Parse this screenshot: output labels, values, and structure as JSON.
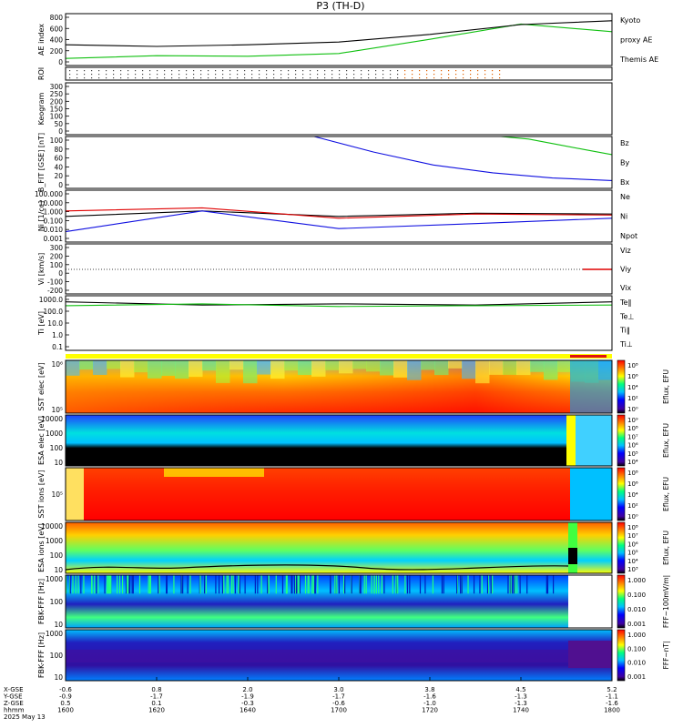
{
  "title": "P3 (TH-D)",
  "colors": {
    "red": "#e00000",
    "green": "#10c010",
    "blue": "#1010e0",
    "black": "#000000",
    "yellow": "#ffff00",
    "redbar": "#e01010"
  },
  "panels": [
    {
      "id": "ae",
      "ylabel": "AE index",
      "ticks": [
        "800",
        "600",
        "400",
        "200",
        "0"
      ],
      "legend": [
        {
          "text": "Kyoto",
          "color": "#10c010"
        },
        {
          "text": "proxy AE",
          "color": "#10c010"
        },
        {
          "text": "Themis AE",
          "color": "#000000"
        }
      ]
    },
    {
      "id": "roi",
      "ylabel": "ROI",
      "ticks": [],
      "legend": []
    },
    {
      "id": "keogram",
      "ylabel": "Keogram",
      "ticks": [
        "300",
        "250",
        "200",
        "150",
        "100",
        "50",
        "0"
      ],
      "legend": []
    },
    {
      "id": "bfit",
      "ylabel": "B_FIT [GSE] [nT]",
      "ticks": [
        "100",
        "80",
        "60",
        "40",
        "20",
        "0"
      ],
      "legend": [
        {
          "text": "Bz",
          "color": "#e00000"
        },
        {
          "text": "By",
          "color": "#10c010"
        },
        {
          "text": "Bx",
          "color": "#1010e0"
        }
      ]
    },
    {
      "id": "ni",
      "ylabel": "Ni [1/cc]",
      "ticks": [
        "100.000",
        "10.000",
        "1.000",
        "0.100",
        "0.010",
        "0.001"
      ],
      "legend": [
        {
          "text": "Ne",
          "color": "#e00000"
        },
        {
          "text": "Ni",
          "color": "#000000"
        },
        {
          "text": "Npot",
          "color": "#1010e0"
        }
      ]
    },
    {
      "id": "vi",
      "ylabel": "Vi [km/s]",
      "ticks": [
        "300",
        "200",
        "100",
        "0",
        "-100",
        "-200"
      ],
      "legend": [
        {
          "text": "Viz",
          "color": "#e00000"
        },
        {
          "text": "Viy",
          "color": "#10c010"
        },
        {
          "text": "Vix",
          "color": "#1010e0"
        }
      ]
    },
    {
      "id": "ti",
      "ylabel": "Ti [eV]",
      "ticks": [
        "1000.0",
        "100.0",
        "10.0",
        "1.0",
        "0.1"
      ],
      "legend": [
        {
          "text": "Te‖",
          "color": "#000000"
        },
        {
          "text": "Te⊥",
          "color": "#e00000"
        },
        {
          "text": "Ti‖",
          "color": "#10c010"
        },
        {
          "text": "Ti⊥",
          "color": "#1010e0"
        }
      ]
    },
    {
      "id": "sst_e",
      "ylabel": "SST elec [eV]",
      "ticks": [
        "10⁶",
        "10⁵"
      ],
      "cbar": {
        "label": "Eflux, EFU",
        "ticks": [
          "10⁸",
          "10⁶",
          "10⁴",
          "10²",
          "10⁰"
        ]
      }
    },
    {
      "id": "esa_e",
      "ylabel": "ESA elec [eV]",
      "ticks": [
        "10000",
        "1000",
        "100",
        "10"
      ],
      "cbar": {
        "label": "Eflux, EFU",
        "ticks": [
          "10⁹",
          "10⁸",
          "10⁷",
          "10⁶",
          "10⁵",
          "10⁴"
        ]
      }
    },
    {
      "id": "sst_i",
      "ylabel": "SST ions [eV]",
      "ticks": [
        "10⁵"
      ],
      "cbar": {
        "label": "Eflux, EFU",
        "ticks": [
          "10⁸",
          "10⁶",
          "10⁴",
          "10²",
          "10⁰"
        ]
      }
    },
    {
      "id": "esa_i",
      "ylabel": "ESA ions [eV]",
      "ticks": [
        "10000",
        "1000",
        "100",
        "10"
      ],
      "cbar": {
        "label": "Eflux, EFU",
        "ticks": [
          "10⁸",
          "10⁷",
          "10⁶",
          "10⁵",
          "10⁴",
          "10³"
        ]
      }
    },
    {
      "id": "fbk_fff",
      "ylabel": "FBK-FFF [Hz]",
      "ticks": [
        "1000",
        "100",
        "10"
      ],
      "cbar": {
        "label": "FFF~100mV/m|",
        "ticks": [
          "1.000",
          "0.100",
          "0.010",
          "0.001"
        ]
      }
    },
    {
      "id": "fbk_fff2",
      "ylabel": "FBK-FFF [Hz]",
      "ticks": [
        "1000",
        "100",
        "10"
      ],
      "cbar": {
        "label": "FFF~nT|",
        "ticks": [
          "1.000",
          "0.100",
          "0.010",
          "0.001"
        ]
      }
    }
  ],
  "xaxis": {
    "row_labels": [
      "X-GSE",
      "Y-GSE",
      "Z-GSE",
      "hhmm",
      "2025 May 13"
    ],
    "columns": [
      {
        "x": "-0.6",
        "y": "-0.9",
        "z": "0.5",
        "t": "1600"
      },
      {
        "x": "0.8",
        "y": "-1.7",
        "z": "0.1",
        "t": "1620"
      },
      {
        "x": "2.0",
        "y": "-1.9",
        "z": "-0.3",
        "t": "1640"
      },
      {
        "x": "3.0",
        "y": "-1.7",
        "z": "-0.6",
        "t": "1700"
      },
      {
        "x": "3.8",
        "y": "-1.6",
        "z": "-1.0",
        "t": "1720"
      },
      {
        "x": "4.5",
        "y": "-1.3",
        "z": "-1.3",
        "t": "1740"
      },
      {
        "x": "5.2",
        "y": "-1.1",
        "z": "-1.6",
        "t": "1800"
      }
    ]
  },
  "chart_data": [
    {
      "type": "line",
      "title": "P3 (TH-D)",
      "ylabel": "AE index",
      "ylim": [
        -100,
        850
      ],
      "x": [
        "1600",
        "1620",
        "1640",
        "1700",
        "1720",
        "1740",
        "1800"
      ],
      "series": [
        {
          "name": "Kyoto proxy AE",
          "values": [
            30,
            80,
            70,
            120,
            380,
            660,
            520
          ]
        },
        {
          "name": "Themis AE",
          "values": [
            280,
            250,
            280,
            330,
            470,
            650,
            720
          ]
        }
      ]
    },
    {
      "type": "line",
      "ylabel": "B_FIT [GSE] [nT]",
      "ylim": [
        0,
        100
      ],
      "series": [
        {
          "name": "By",
          "values": [
            100,
            95,
            85,
            75,
            65
          ]
        },
        {
          "name": "Bx",
          "values": [
            100,
            70,
            45,
            30,
            20,
            15
          ]
        }
      ]
    },
    {
      "type": "line",
      "ylabel": "Ni [1/cc]",
      "ylim": [
        0.001,
        100
      ],
      "yscale": "log",
      "series": [
        {
          "name": "Ni",
          "values": [
            0.3,
            1,
            0.3,
            0.6,
            0.5
          ]
        },
        {
          "name": "Ne",
          "values": [
            1,
            2,
            0.2,
            0.5,
            0.4
          ]
        },
        {
          "name": "Npot",
          "values": [
            0.01,
            1,
            0.02,
            0.06,
            0.2
          ]
        }
      ]
    },
    {
      "type": "line",
      "ylabel": "Ti [eV]",
      "ylim": [
        0.1,
        5000
      ],
      "yscale": "log",
      "series": [
        {
          "name": "Te‖",
          "values": [
            1500,
            800,
            1000,
            800,
            1500
          ]
        },
        {
          "name": "Ti‖",
          "values": [
            700,
            1000,
            600,
            700,
            800
          ]
        }
      ]
    },
    {
      "type": "heatmap",
      "ylabel": "SST elec [eV]"
    },
    {
      "type": "heatmap",
      "ylabel": "ESA elec [eV]"
    },
    {
      "type": "heatmap",
      "ylabel": "SST ions [eV]"
    },
    {
      "type": "heatmap",
      "ylabel": "ESA ions [eV]"
    },
    {
      "type": "heatmap",
      "ylabel": "FBK-FFF [Hz]"
    },
    {
      "type": "heatmap",
      "ylabel": "FBK-FFF [Hz]"
    }
  ]
}
